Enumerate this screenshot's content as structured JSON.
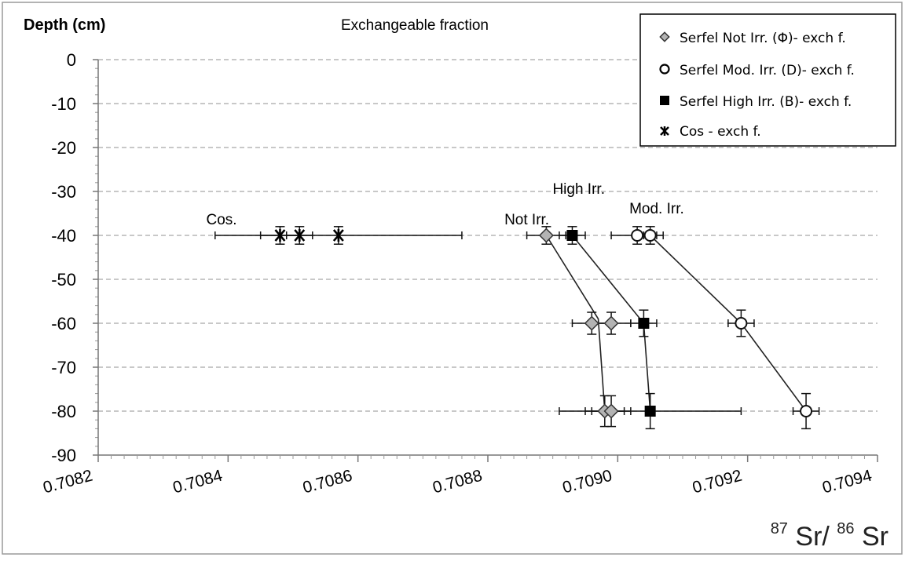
{
  "chart_data": {
    "type": "scatter",
    "title": "Exchangeable fraction",
    "ylabel": "Depth (cm)",
    "xlabel_parts": {
      "sup1": "87",
      "base1": "Sr/",
      "sup2": "86",
      "base2": "Sr"
    },
    "xlim": [
      0.7082,
      0.7094
    ],
    "ylim": [
      -90,
      0
    ],
    "x_ticks": [
      "0.7082",
      "0.7084",
      "0.7086",
      "0.7088",
      "0.7090",
      "0.7092",
      "0.7094"
    ],
    "y_ticks": [
      "0",
      "-10",
      "-20",
      "-30",
      "-40",
      "-50",
      "-60",
      "-70",
      "-80",
      "-90"
    ],
    "grid": "horizontal dashed",
    "legend_position": "top-right",
    "legend": [
      "Serfel Not Irr. (Φ)- exch f.",
      "Serfel Mod. Irr. (D)- exch f.",
      "Serfel High Irr. (B)- exch f.",
      "Cos - exch f."
    ],
    "annotations": [
      {
        "text": "Cos.",
        "x": 0.70839,
        "y": -37.5
      },
      {
        "text": "Not Irr.",
        "x": 0.70886,
        "y": -37.5
      },
      {
        "text": "High Irr.",
        "x": 0.70894,
        "y": -30.5
      },
      {
        "text": "Mod. Irr.",
        "x": 0.70906,
        "y": -35
      }
    ],
    "series": [
      {
        "name": "Serfel Not Irr. (Φ)- exch f.",
        "marker": "diamond",
        "points": [
          {
            "x": 0.70889,
            "y": -40,
            "xerr": 3e-05,
            "yerr": 2
          },
          {
            "x": 0.70896,
            "y": -60,
            "xerr": 3e-05,
            "yerr": 2.5
          },
          {
            "x": 0.70899,
            "y": -60,
            "xerr": 3e-05,
            "yerr": 2.5
          },
          {
            "x": 0.70898,
            "y": -80,
            "xerr": 3e-05,
            "yerr": 3.5
          },
          {
            "x": 0.70899,
            "y": -80,
            "xerr": 3e-05,
            "yerr": 3.5
          }
        ]
      },
      {
        "name": "Serfel Mod. Irr. (D)- exch f.",
        "marker": "circle",
        "points": [
          {
            "x": 0.70903,
            "y": -40,
            "xerr": 4e-05,
            "yerr": 2
          },
          {
            "x": 0.70905,
            "y": -40,
            "xerr": 1e-05,
            "yerr": 2
          },
          {
            "x": 0.70919,
            "y": -60,
            "xerr": 2e-05,
            "yerr": 3
          },
          {
            "x": 0.70929,
            "y": -80,
            "xerr": 2e-05,
            "yerr": 4
          }
        ]
      },
      {
        "name": "Serfel High Irr. (B)- exch f.",
        "marker": "square",
        "points": [
          {
            "x": 0.70893,
            "y": -40,
            "xerr": 2e-05,
            "yerr": 2
          },
          {
            "x": 0.70904,
            "y": -60,
            "xerr": 2e-05,
            "yerr": 3
          },
          {
            "x": 0.70905,
            "y": -80,
            "xerr": 0.00014,
            "yerr": 4
          }
        ]
      },
      {
        "name": "Cos - exch f.",
        "marker": "asterisk",
        "points": [
          {
            "x": 0.70848,
            "y": -40,
            "xerr": 3e-05,
            "yerr": 2
          },
          {
            "x": 0.70851,
            "y": -40,
            "xerr": 2e-05,
            "yerr": 2
          },
          {
            "x": 0.70857,
            "y": -40,
            "xerr": 0.00019,
            "yerr": 2
          }
        ]
      }
    ],
    "connector_lines": [
      {
        "series": "Serfel Not Irr. (Φ)- exch f.",
        "points": [
          [
            0.70889,
            -40
          ],
          [
            0.70897,
            -59
          ],
          [
            0.70898,
            -80
          ]
        ]
      },
      {
        "series": "Serfel High Irr. (B)- exch f.",
        "points": [
          [
            0.70893,
            -40
          ],
          [
            0.70904,
            -60
          ],
          [
            0.70905,
            -80
          ]
        ]
      },
      {
        "series": "Serfel Mod. Irr. (D)- exch f.",
        "points": [
          [
            0.70905,
            -40
          ],
          [
            0.70919,
            -60
          ],
          [
            0.70929,
            -80
          ]
        ]
      }
    ]
  }
}
